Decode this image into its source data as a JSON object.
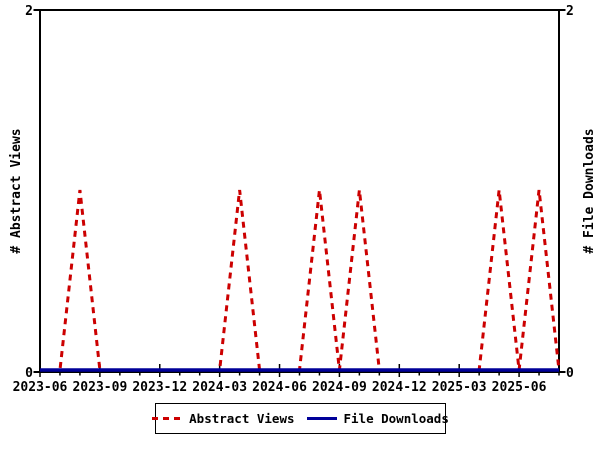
{
  "chart_data": {
    "type": "line",
    "title": "",
    "x": [
      "2023-06",
      "2023-07",
      "2023-08",
      "2023-09",
      "2023-10",
      "2023-11",
      "2023-12",
      "2024-01",
      "2024-02",
      "2024-03",
      "2024-04",
      "2024-05",
      "2024-06",
      "2024-07",
      "2024-08",
      "2024-09",
      "2024-10",
      "2024-11",
      "2024-12",
      "2025-01",
      "2025-02",
      "2025-03",
      "2025-04",
      "2025-05",
      "2025-06",
      "2025-07",
      "2025-08"
    ],
    "series": [
      {
        "name": "Abstract Views",
        "color": "#cc0000",
        "style": "dashed",
        "values": [
          0,
          0,
          1,
          0,
          0,
          0,
          0,
          0,
          0,
          0,
          1,
          0,
          0,
          0,
          1,
          0,
          1,
          0,
          0,
          0,
          0,
          0,
          0,
          1,
          0,
          1,
          0
        ]
      },
      {
        "name": "File Downloads",
        "color": "#000099",
        "style": "solid",
        "values": [
          0,
          0,
          0,
          0,
          0,
          0,
          0,
          0,
          0,
          0,
          0,
          0,
          0,
          0,
          0,
          0,
          0,
          0,
          0,
          0,
          0,
          0,
          0,
          0,
          0,
          0,
          0
        ]
      }
    ],
    "ylabel_left": "# Abstract Views",
    "ylabel_right": "# File Downloads",
    "ylim": [
      0,
      2
    ],
    "y_ticks": [
      {
        "label": "0",
        "value": 0
      },
      {
        "label": "2",
        "value": 2
      }
    ],
    "x_tick_labels": [
      "2023-06",
      "2023-09",
      "2023-12",
      "2024-03",
      "2024-06",
      "2024-09",
      "2024-12",
      "2025-03",
      "2025-06"
    ],
    "x_major_every": 3,
    "grid": false,
    "legend_position": "bottom-center",
    "axis_color": "#000000",
    "background_color": "#ffffff"
  }
}
